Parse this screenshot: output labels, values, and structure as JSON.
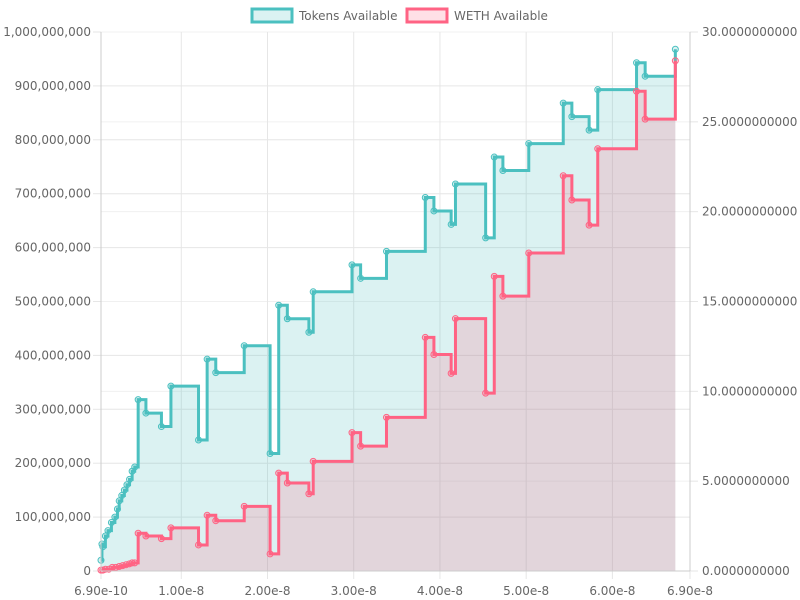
{
  "chart_data": {
    "type": "line",
    "legend_position": "top",
    "colors": {
      "tokens_line": "#4bc0c0",
      "tokens_fill": "rgba(75,192,192,0.2)",
      "weth_line": "#ff6384",
      "weth_fill": "rgba(255,99,132,0.2)",
      "grid": "#e6e6e6",
      "axis_text": "#666666"
    },
    "x_axis": {
      "min": 6.9e-10,
      "max": 6.9e-08,
      "tick_labels": [
        "6.90e-10",
        "1.00e-8",
        "2.00e-8",
        "3.00e-8",
        "4.00e-8",
        "5.00e-8",
        "6.00e-8",
        "6.90e-8"
      ]
    },
    "y_left": {
      "min": 0,
      "max": 1000000000,
      "tick_labels": [
        "0",
        "100,000,000",
        "200,000,000",
        "300,000,000",
        "400,000,000",
        "500,000,000",
        "600,000,000",
        "700,000,000",
        "800,000,000",
        "900,000,000",
        "1,000,000,000"
      ]
    },
    "y_right": {
      "min": 0,
      "max": 30,
      "tick_labels": [
        "0.0000000000",
        "5.0000000000",
        "10.0000000000",
        "15.0000000000",
        "20.0000000000",
        "25.0000000000",
        "30.0000000000"
      ]
    },
    "series": [
      {
        "name": "Tokens Available",
        "axis": "left",
        "points": [
          [
            6.9e-10,
            20000000
          ],
          [
            8e-10,
            50000000
          ],
          [
            9e-10,
            45000000
          ],
          [
            1.2e-09,
            65000000
          ],
          [
            1.5e-09,
            75000000
          ],
          [
            1.9e-09,
            90000000
          ],
          [
            2.3e-09,
            100000000
          ],
          [
            2.6e-09,
            115000000
          ],
          [
            2.8e-09,
            130000000
          ],
          [
            3.1e-09,
            140000000
          ],
          [
            3.4e-09,
            150000000
          ],
          [
            3.7e-09,
            160000000
          ],
          [
            4e-09,
            170000000
          ],
          [
            4.3e-09,
            185000000
          ],
          [
            4.6e-09,
            193000000
          ],
          [
            5e-09,
            318000000
          ],
          [
            5.9e-09,
            293000000
          ],
          [
            7.7e-09,
            268000000
          ],
          [
            8.8e-09,
            343000000
          ],
          [
            1.2e-08,
            243000000
          ],
          [
            1.3e-08,
            393000000
          ],
          [
            1.4e-08,
            368000000
          ],
          [
            1.73e-08,
            418000000
          ],
          [
            2.03e-08,
            218000000
          ],
          [
            2.13e-08,
            493000000
          ],
          [
            2.23e-08,
            468000000
          ],
          [
            2.48e-08,
            443000000
          ],
          [
            2.53e-08,
            518000000
          ],
          [
            2.98e-08,
            568000000
          ],
          [
            3.08e-08,
            543000000
          ],
          [
            3.38e-08,
            593000000
          ],
          [
            3.83e-08,
            693000000
          ],
          [
            3.93e-08,
            668000000
          ],
          [
            4.13e-08,
            643000000
          ],
          [
            4.18e-08,
            718000000
          ],
          [
            4.53e-08,
            618000000
          ],
          [
            4.63e-08,
            768000000
          ],
          [
            4.73e-08,
            743000000
          ],
          [
            5.03e-08,
            793000000
          ],
          [
            5.43e-08,
            868000000
          ],
          [
            5.53e-08,
            843000000
          ],
          [
            5.73e-08,
            818000000
          ],
          [
            5.83e-08,
            893000000
          ],
          [
            6.28e-08,
            943000000
          ],
          [
            6.38e-08,
            918000000
          ],
          [
            6.73e-08,
            968000000
          ]
        ]
      },
      {
        "name": "WETH Available",
        "axis": "right",
        "points": [
          [
            6.9e-10,
            0.05
          ],
          [
            9e-10,
            0.05
          ],
          [
            1.2e-09,
            0.1
          ],
          [
            1.6e-09,
            0.1
          ],
          [
            2e-09,
            0.2
          ],
          [
            2.4e-09,
            0.2
          ],
          [
            2.8e-09,
            0.25
          ],
          [
            3.2e-09,
            0.3
          ],
          [
            3.6e-09,
            0.35
          ],
          [
            4e-09,
            0.4
          ],
          [
            4.3e-09,
            0.45
          ],
          [
            4.6e-09,
            0.45
          ],
          [
            5e-09,
            2.1
          ],
          [
            5.9e-09,
            1.95
          ],
          [
            7.7e-09,
            1.8
          ],
          [
            8.8e-09,
            2.4
          ],
          [
            1.2e-08,
            1.45
          ],
          [
            1.3e-08,
            3.1
          ],
          [
            1.4e-08,
            2.8
          ],
          [
            1.73e-08,
            3.6
          ],
          [
            2.03e-08,
            0.95
          ],
          [
            2.13e-08,
            5.45
          ],
          [
            2.23e-08,
            4.9
          ],
          [
            2.48e-08,
            4.3
          ],
          [
            2.53e-08,
            6.1
          ],
          [
            2.98e-08,
            7.7
          ],
          [
            3.08e-08,
            6.95
          ],
          [
            3.38e-08,
            8.55
          ],
          [
            3.83e-08,
            13.0
          ],
          [
            3.93e-08,
            12.05
          ],
          [
            4.13e-08,
            11.0
          ],
          [
            4.18e-08,
            14.05
          ],
          [
            4.53e-08,
            9.9
          ],
          [
            4.63e-08,
            16.4
          ],
          [
            4.73e-08,
            15.3
          ],
          [
            5.03e-08,
            17.7
          ],
          [
            5.43e-08,
            22.0
          ],
          [
            5.53e-08,
            20.65
          ],
          [
            5.73e-08,
            19.25
          ],
          [
            5.83e-08,
            23.5
          ],
          [
            6.28e-08,
            26.7
          ],
          [
            6.38e-08,
            25.15
          ],
          [
            6.73e-08,
            28.4
          ]
        ]
      }
    ]
  }
}
